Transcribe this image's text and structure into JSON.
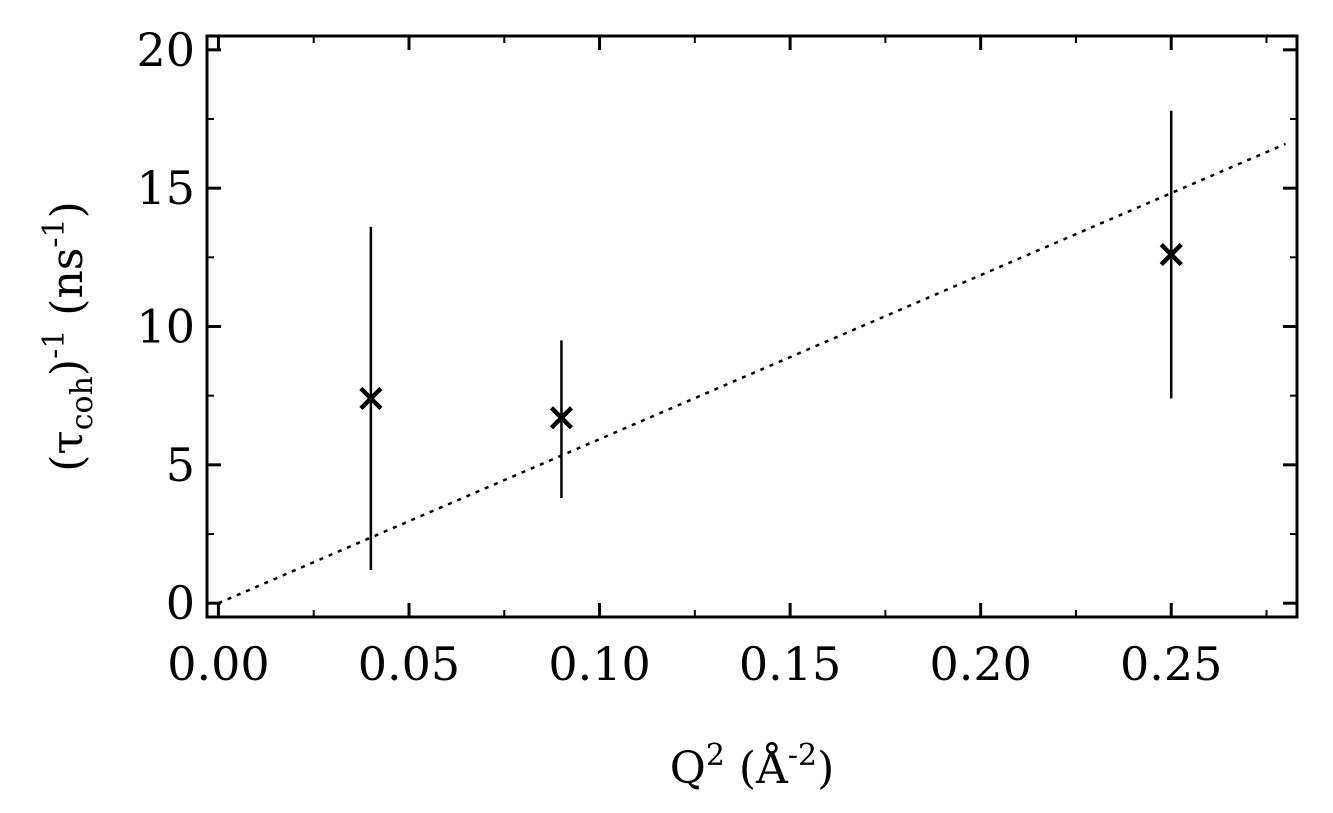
{
  "chart_data": {
    "type": "scatter",
    "xlabel": {
      "base": "Q",
      "sup": "2",
      "unit_open": " (Å",
      "unit_sup": "-2",
      "unit_close": ")"
    },
    "ylabel": {
      "open": "(τ",
      "sub": "coh",
      "close": ")",
      "sup": "-1",
      "unit": " (ns",
      "unit_sup": "-1",
      "unit_close": ")"
    },
    "xlim": [
      -0.003,
      0.283
    ],
    "ylim": [
      -0.5,
      20.5
    ],
    "xticks": [
      0.0,
      0.05,
      0.1,
      0.15,
      0.2,
      0.25
    ],
    "xtick_labels": [
      "0.00",
      "0.05",
      "0.10",
      "0.15",
      "0.20",
      "0.25"
    ],
    "yticks": [
      0,
      5,
      10,
      15,
      20
    ],
    "ytick_labels": [
      "0",
      "5",
      "10",
      "15",
      "20"
    ],
    "points": [
      {
        "x": 0.04,
        "y": 7.4,
        "err_low": 1.2,
        "err_high": 13.6
      },
      {
        "x": 0.09,
        "y": 6.7,
        "err_low": 3.8,
        "err_high": 9.5
      },
      {
        "x": 0.25,
        "y": 12.6,
        "err_low": 7.4,
        "err_high": 17.8
      }
    ],
    "fit_line": {
      "style": "dotted",
      "x": [
        0.0,
        0.28
      ],
      "y": [
        0.0,
        16.6
      ]
    },
    "grid": false,
    "marker": "x"
  }
}
